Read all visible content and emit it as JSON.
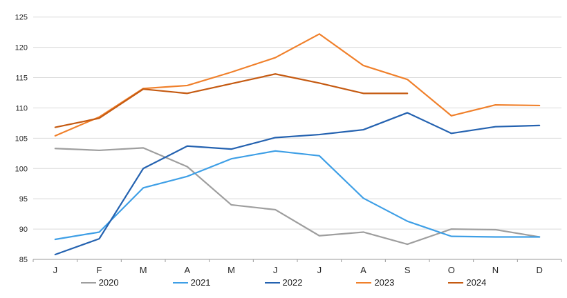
{
  "chart_data": {
    "type": "line",
    "title": "",
    "xlabel": "",
    "ylabel": "",
    "categories": [
      "J",
      "F",
      "M",
      "A",
      "M",
      "J",
      "J",
      "A",
      "S",
      "O",
      "N",
      "D"
    ],
    "ylim": [
      85,
      125
    ],
    "yticks": [
      85,
      90,
      95,
      100,
      105,
      110,
      115,
      120,
      125
    ],
    "grid": "horizontal",
    "legend_position": "bottom",
    "series": [
      {
        "name": "2020",
        "color": "#9E9E9E",
        "values": [
          103.3,
          103.0,
          103.4,
          100.3,
          94.0,
          93.2,
          88.9,
          89.5,
          87.5,
          90.0,
          89.9,
          88.7
        ]
      },
      {
        "name": "2021",
        "color": "#3E9FE6",
        "values": [
          88.3,
          89.5,
          96.8,
          98.7,
          101.6,
          102.9,
          102.1,
          95.1,
          91.3,
          88.8,
          88.7,
          88.7
        ]
      },
      {
        "name": "2022",
        "color": "#2462B0",
        "values": [
          85.8,
          88.4,
          100.0,
          103.7,
          103.2,
          105.1,
          105.6,
          106.4,
          109.2,
          105.8,
          106.9,
          107.1
        ]
      },
      {
        "name": "2023",
        "color": "#F0802B",
        "values": [
          105.4,
          108.5,
          113.2,
          113.7,
          115.9,
          118.3,
          122.2,
          117.0,
          114.7,
          108.7,
          110.5,
          110.4
        ]
      },
      {
        "name": "2024",
        "color": "#C55A11",
        "values": [
          106.8,
          108.3,
          113.1,
          112.4,
          114.0,
          115.6,
          114.1,
          112.4,
          112.4
        ]
      }
    ],
    "style": {
      "gridline_color": "#D9D9D9",
      "axis_color": "#999999",
      "tick_label_color": "#262626",
      "background": "#FFFFFF"
    }
  }
}
